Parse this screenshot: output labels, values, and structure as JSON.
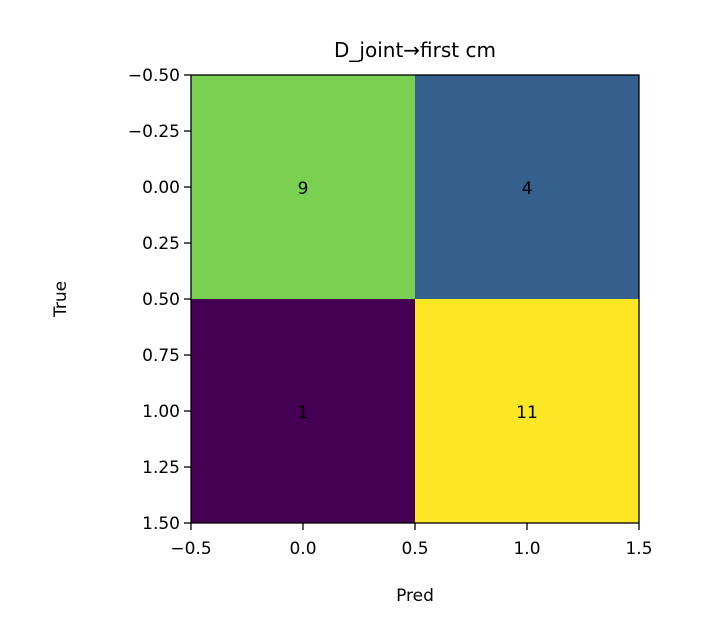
{
  "chart_data": {
    "type": "heatmap",
    "title": "D_joint→first cm",
    "xlabel": "Pred",
    "ylabel": "True",
    "xlim": [
      -0.5,
      1.5
    ],
    "ylim": [
      1.5,
      -0.5
    ],
    "xticks": [
      -0.5,
      0.0,
      0.5,
      1.0,
      1.5
    ],
    "xtick_labels": [
      "−0.5",
      "0.0",
      "0.5",
      "1.0",
      "1.5"
    ],
    "yticks": [
      -0.5,
      -0.25,
      0.0,
      0.25,
      0.5,
      0.75,
      1.0,
      1.25,
      1.5
    ],
    "ytick_labels": [
      "−0.50",
      "−0.25",
      "0.00",
      "0.25",
      "0.50",
      "0.75",
      "1.00",
      "1.25",
      "1.50"
    ],
    "matrix": [
      [
        9,
        4
      ],
      [
        1,
        11
      ]
    ],
    "cell_labels": [
      [
        "9",
        "4"
      ],
      [
        "1",
        "11"
      ]
    ],
    "colormap": "viridis",
    "cell_colors": [
      [
        "#7ad151",
        "#355f8d"
      ],
      [
        "#440154",
        "#fde725"
      ]
    ],
    "grid": false,
    "legend": "none"
  }
}
